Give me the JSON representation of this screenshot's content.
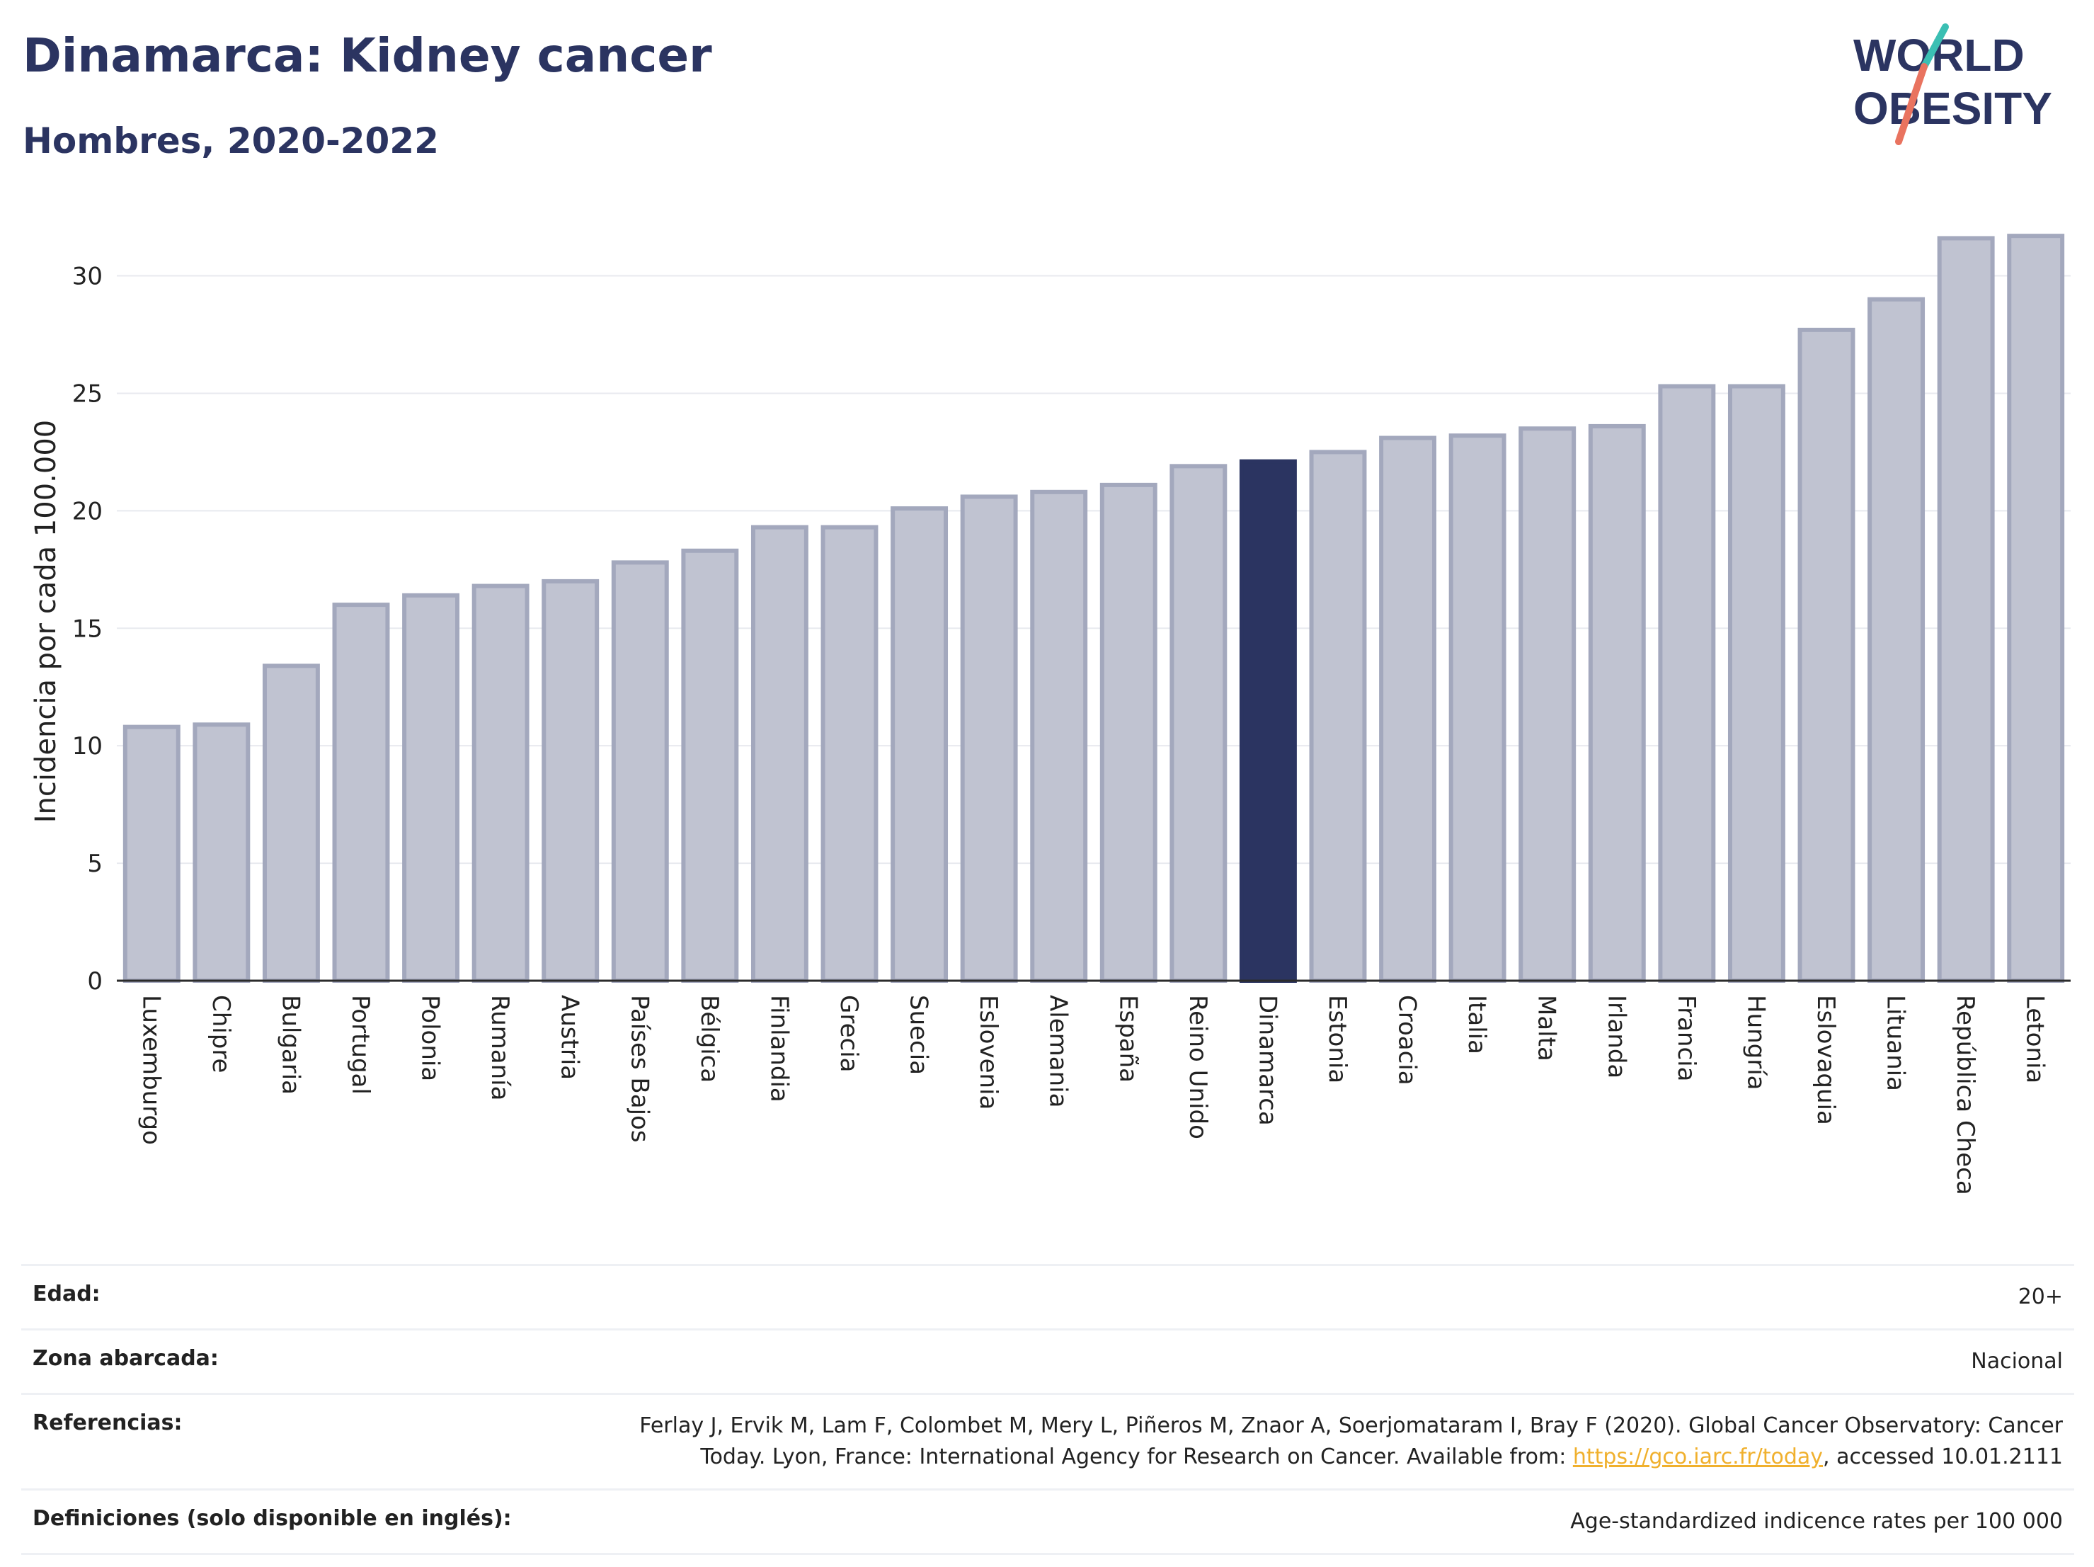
{
  "header": {
    "title": "Dinamarca: Kidney cancer",
    "subtitle": "Hombres, 2020-2022"
  },
  "logo": {
    "line1": "WORLD",
    "line2": "OBESITY"
  },
  "chart_data": {
    "type": "bar",
    "ylabel": "Incidencia por cada 100.000",
    "xlabel": "",
    "ylim": [
      0,
      33
    ],
    "yticks": [
      0,
      5,
      10,
      15,
      20,
      25,
      30
    ],
    "highlight": "Dinamarca",
    "colors": {
      "bar": "#c0c3d1",
      "bar_edge": "#a3a8bd",
      "highlight": "#2b3461",
      "grid": "#e8eaef"
    },
    "categories": [
      "Luxemburgo",
      "Chipre",
      "Bulgaria",
      "Portugal",
      "Polonia",
      "Rumanía",
      "Austria",
      "Países Bajos",
      "Bélgica",
      "Finlandia",
      "Grecia",
      "Suecia",
      "Eslovenia",
      "Alemania",
      "España",
      "Reino Unido",
      "Dinamarca",
      "Estonia",
      "Croacia",
      "Italia",
      "Malta",
      "Irlanda",
      "Francia",
      "Hungría",
      "Eslovaquia",
      "Lituania",
      "República Checa",
      "Letonia"
    ],
    "values": [
      10.8,
      10.9,
      13.4,
      16.0,
      16.4,
      16.8,
      17.0,
      17.8,
      18.3,
      19.3,
      19.3,
      20.1,
      20.6,
      20.8,
      21.1,
      21.9,
      22.1,
      22.5,
      23.1,
      23.2,
      23.5,
      23.6,
      25.3,
      25.3,
      27.7,
      29.0,
      31.6,
      31.7
    ]
  },
  "meta": {
    "age_label": "Edad:",
    "age_value": "20+",
    "zone_label": "Zona abarcada:",
    "zone_value": "Nacional",
    "refs_label": "Referencias:",
    "refs_text_1": "Ferlay J, Ervik M, Lam F, Colombet M, Mery L, Piñeros M, Znaor A, Soerjomataram I, Bray F (2020). Global Cancer Observatory: Cancer Today. Lyon, France: International Agency for Research on Cancer. Available from: ",
    "refs_link": "https://gco.iarc.fr/today",
    "refs_text_2": ", accessed 10.01.2111",
    "defs_label": "Definiciones (solo disponible en inglés):",
    "defs_value": "Age-standardized indicence rates per 100 000"
  }
}
